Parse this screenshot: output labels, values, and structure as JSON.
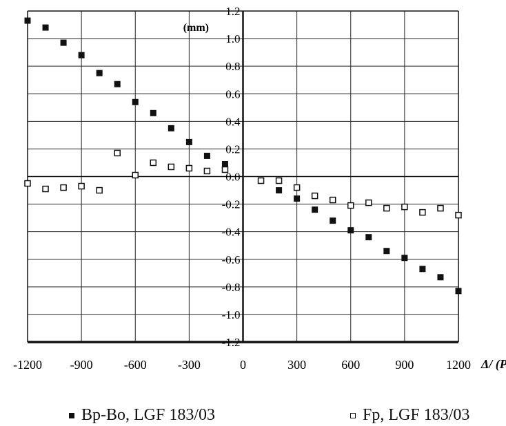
{
  "chart_data": {
    "type": "scatter",
    "title": "",
    "ylabel": "(mm)",
    "xlabel": "Δ/ (Pa",
    "xlim": [
      -1200,
      1200
    ],
    "ylim": [
      -1.2,
      1.2
    ],
    "x_ticks": [
      "-1200",
      "-900",
      "-600",
      "-300",
      "0",
      "300",
      "600",
      "900",
      "1200"
    ],
    "y_ticks": [
      "1.2",
      "1.0",
      "0.8",
      "0.6",
      "0.4",
      "0.2",
      "0.0",
      "-0.2",
      "-0.4",
      "-0.6",
      "-0.8",
      "-1.0",
      "-1.2"
    ],
    "grid": true,
    "legend_position": "bottom",
    "series": [
      {
        "name": "Bp-Bo, LGF 183/03",
        "marker": "filled-square",
        "color": "#111111",
        "points": [
          [
            -1200,
            1.13
          ],
          [
            -1100,
            1.08
          ],
          [
            -1000,
            0.97
          ],
          [
            -900,
            0.88
          ],
          [
            -800,
            0.75
          ],
          [
            -700,
            0.67
          ],
          [
            -600,
            0.54
          ],
          [
            -500,
            0.46
          ],
          [
            -400,
            0.35
          ],
          [
            -300,
            0.25
          ],
          [
            -200,
            0.15
          ],
          [
            -100,
            0.09
          ],
          [
            100,
            -0.03
          ],
          [
            200,
            -0.1
          ],
          [
            300,
            -0.16
          ],
          [
            400,
            -0.24
          ],
          [
            500,
            -0.32
          ],
          [
            600,
            -0.39
          ],
          [
            700,
            -0.44
          ],
          [
            800,
            -0.54
          ],
          [
            900,
            -0.59
          ],
          [
            1000,
            -0.67
          ],
          [
            1100,
            -0.73
          ],
          [
            1200,
            -0.83
          ]
        ]
      },
      {
        "name": "Fp, LGF 183/03",
        "marker": "open-square",
        "color": "#111111",
        "points": [
          [
            -1200,
            -0.05
          ],
          [
            -1100,
            -0.09
          ],
          [
            -1000,
            -0.08
          ],
          [
            -900,
            -0.07
          ],
          [
            -800,
            -0.1
          ],
          [
            -700,
            0.17
          ],
          [
            -600,
            0.01
          ],
          [
            -500,
            0.1
          ],
          [
            -400,
            0.07
          ],
          [
            -300,
            0.06
          ],
          [
            -200,
            0.04
          ],
          [
            -100,
            0.05
          ],
          [
            100,
            -0.03
          ],
          [
            200,
            -0.03
          ],
          [
            300,
            -0.08
          ],
          [
            400,
            -0.14
          ],
          [
            500,
            -0.17
          ],
          [
            600,
            -0.21
          ],
          [
            700,
            -0.19
          ],
          [
            800,
            -0.23
          ],
          [
            900,
            -0.22
          ],
          [
            1000,
            -0.26
          ],
          [
            1100,
            -0.23
          ],
          [
            1200,
            -0.28
          ]
        ]
      }
    ]
  }
}
